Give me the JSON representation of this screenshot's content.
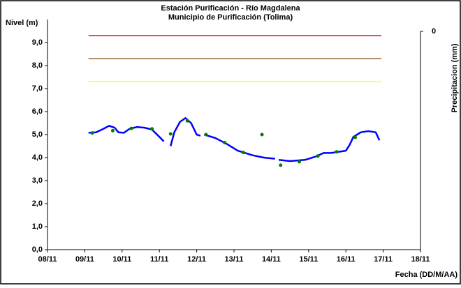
{
  "chart_data": {
    "type": "line",
    "title": "Estación Purificación - Río Magdalena",
    "subtitle": "Municipio de Purificación (Tolima)",
    "y_label": "Nivel (m)",
    "y2_label": "Precipitacion (mm)",
    "x_label": "Fecha (DD/M/AA)",
    "xlim": [
      8,
      18
    ],
    "xticks": [
      {
        "value": 8,
        "label": "08/11"
      },
      {
        "value": 9,
        "label": "09/11"
      },
      {
        "value": 10,
        "label": "10/11"
      },
      {
        "value": 11,
        "label": "11/11"
      },
      {
        "value": 12,
        "label": "12/11"
      },
      {
        "value": 13,
        "label": "13/11"
      },
      {
        "value": 14,
        "label": "14/11"
      },
      {
        "value": 15,
        "label": "15/11"
      },
      {
        "value": 16,
        "label": "16/11"
      },
      {
        "value": 17,
        "label": "17/11"
      },
      {
        "value": 18,
        "label": "18/11"
      }
    ],
    "ylim": [
      0,
      10
    ],
    "yticks": [
      {
        "value": 0,
        "label": "0,0"
      },
      {
        "value": 1,
        "label": "1,0"
      },
      {
        "value": 2,
        "label": "2,0"
      },
      {
        "value": 3,
        "label": "3,0"
      },
      {
        "value": 4,
        "label": "4,0"
      },
      {
        "value": 5,
        "label": "5,0"
      },
      {
        "value": 6,
        "label": "6,0"
      },
      {
        "value": 7,
        "label": "7,0"
      },
      {
        "value": 8,
        "label": "8,0"
      },
      {
        "value": 9,
        "label": "9,0"
      }
    ],
    "y2ticks": [
      0
    ],
    "grid": false,
    "series": [
      {
        "type": "line",
        "color": "#ff0000",
        "x": [
          9.1,
          16.95
        ],
        "values": [
          9.3,
          9.3
        ]
      },
      {
        "type": "line",
        "color": "#996633",
        "x": [
          9.1,
          16.95
        ],
        "values": [
          8.3,
          8.3
        ]
      },
      {
        "type": "line",
        "color": "#ffff00",
        "x": [
          9.1,
          16.95
        ],
        "values": [
          7.3,
          7.3
        ]
      },
      {
        "type": "line",
        "color": "#0000ff",
        "x": [
          9.1,
          9.3,
          9.5,
          9.65,
          9.8,
          9.9,
          10.05,
          10.2,
          10.4,
          10.6,
          10.8,
          11.0,
          11.12,
          11.15,
          11.3,
          11.4,
          11.55,
          11.7,
          11.85,
          12.0,
          12.1,
          12.15,
          12.2,
          12.5,
          12.8,
          13.1,
          13.5,
          13.8,
          14.1,
          14.15,
          14.2,
          14.5,
          14.9,
          15.0,
          15.2,
          15.4,
          15.6,
          15.8,
          16.0,
          16.1,
          16.2,
          16.4,
          16.6,
          16.8,
          16.9
        ],
        "values": [
          5.08,
          5.1,
          5.25,
          5.38,
          5.3,
          5.1,
          5.08,
          5.25,
          5.33,
          5.3,
          5.22,
          4.9,
          4.7,
          null,
          4.5,
          5.1,
          5.55,
          5.72,
          5.5,
          5.0,
          4.95,
          null,
          5.0,
          4.85,
          4.6,
          4.3,
          4.1,
          4.0,
          3.95,
          null,
          3.9,
          3.85,
          3.9,
          3.95,
          4.05,
          4.2,
          4.2,
          4.25,
          4.3,
          4.55,
          4.9,
          5.1,
          5.15,
          5.1,
          4.75
        ]
      },
      {
        "type": "scatter",
        "color": "#008000",
        "x": [
          9.2,
          9.75,
          10.25,
          10.8,
          11.3,
          11.75,
          12.25,
          12.75,
          13.25,
          13.75,
          14.25,
          14.75,
          15.25,
          15.75,
          16.25
        ],
        "values": [
          5.07,
          5.17,
          5.27,
          5.25,
          5.03,
          5.6,
          5.0,
          4.65,
          4.22,
          5.0,
          3.67,
          3.82,
          4.07,
          4.25,
          4.88
        ]
      }
    ]
  }
}
